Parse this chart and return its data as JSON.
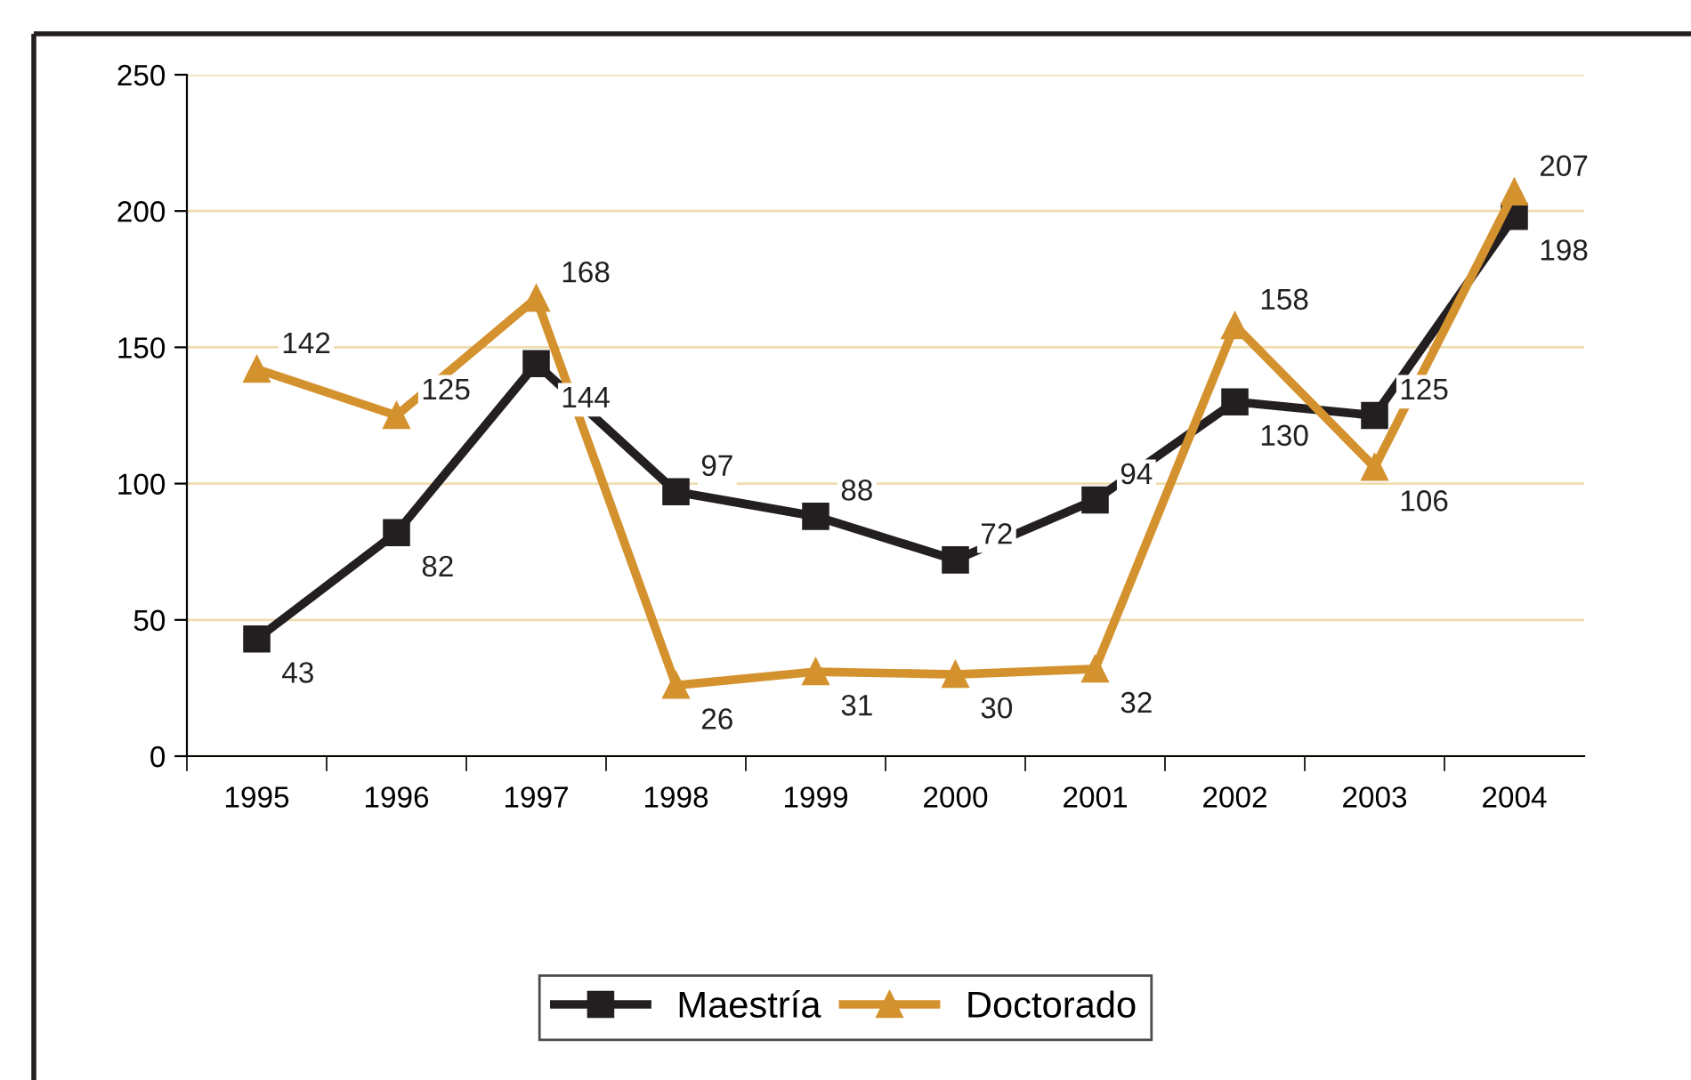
{
  "chart_data": {
    "type": "line",
    "categories": [
      "1995",
      "1996",
      "1997",
      "1998",
      "1999",
      "2000",
      "2001",
      "2002",
      "2003",
      "2004"
    ],
    "series": [
      {
        "name": "Maestría",
        "color": "#231f20",
        "values": [
          43,
          82,
          144,
          97,
          88,
          72,
          94,
          130,
          125,
          198
        ],
        "marker": "square"
      },
      {
        "name": "Doctorado",
        "color": "#d4922e",
        "values": [
          142,
          125,
          168,
          26,
          31,
          30,
          32,
          158,
          106,
          207
        ],
        "marker": "triangle"
      }
    ],
    "ylim": [
      0,
      250
    ],
    "yticks": [
      0,
      50,
      100,
      150,
      200,
      250
    ],
    "grid": "y",
    "legend": "bottom",
    "data_labels": true,
    "line_style": "solid"
  }
}
